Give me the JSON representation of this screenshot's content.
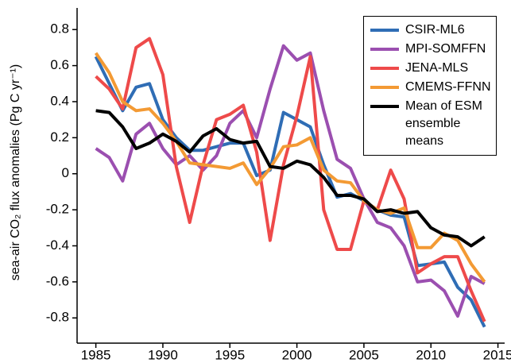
{
  "chart_data": {
    "type": "line",
    "ylabel": "sea-air CO₂ flux anomalies (Pg C yr⁻¹)",
    "x": [
      1985,
      1986,
      1987,
      1988,
      1989,
      1990,
      1991,
      1992,
      1993,
      1994,
      1995,
      1996,
      1997,
      1998,
      1999,
      2000,
      2001,
      2002,
      2003,
      2004,
      2005,
      2006,
      2007,
      2008,
      2009,
      2010,
      2011,
      2012,
      2013,
      2014
    ],
    "series": [
      {
        "name": "CSIR-ML6",
        "color": "#2f6db5",
        "values": [
          0.65,
          0.5,
          0.35,
          0.48,
          0.5,
          0.3,
          0.2,
          0.13,
          0.13,
          0.15,
          0.17,
          0.17,
          -0.01,
          0.02,
          0.34,
          0.3,
          0.26,
          0.05,
          -0.13,
          -0.11,
          -0.15,
          -0.2,
          -0.23,
          -0.24,
          -0.51,
          -0.5,
          -0.49,
          -0.63,
          -0.7,
          -0.85
        ]
      },
      {
        "name": "MPI-SOMFFN",
        "color": "#9b4fb0",
        "values": [
          0.14,
          0.09,
          -0.04,
          0.22,
          0.28,
          0.14,
          0.05,
          0.1,
          0.02,
          0.1,
          0.28,
          0.35,
          0.2,
          0.47,
          0.71,
          0.63,
          0.67,
          0.35,
          0.08,
          0.03,
          -0.14,
          -0.27,
          -0.3,
          -0.4,
          -0.6,
          -0.59,
          -0.65,
          -0.79,
          -0.57,
          -0.61
        ]
      },
      {
        "name": "JENA-MLS",
        "color": "#ee4a4a",
        "values": [
          0.54,
          0.47,
          0.36,
          0.7,
          0.75,
          0.55,
          0.04,
          -0.27,
          0.05,
          0.3,
          0.33,
          0.38,
          0.12,
          -0.37,
          0.05,
          0.32,
          0.65,
          -0.2,
          -0.42,
          -0.42,
          -0.15,
          -0.2,
          0.02,
          -0.14,
          -0.55,
          -0.5,
          -0.46,
          -0.46,
          -0.65,
          -0.82
        ]
      },
      {
        "name": "CMEMS-FFNN",
        "color": "#f39a34",
        "values": [
          0.67,
          0.56,
          0.4,
          0.35,
          0.36,
          0.28,
          0.18,
          0.06,
          0.05,
          0.04,
          0.03,
          0.06,
          -0.06,
          0.03,
          0.15,
          0.16,
          0.2,
          0.02,
          -0.04,
          -0.05,
          -0.15,
          -0.2,
          -0.22,
          -0.19,
          -0.41,
          -0.41,
          -0.33,
          -0.37,
          -0.5,
          -0.6
        ]
      },
      {
        "name": "Mean of ESM ensemble means",
        "color": "#000000",
        "values": [
          0.35,
          0.34,
          0.26,
          0.14,
          0.17,
          0.22,
          0.18,
          0.12,
          0.21,
          0.25,
          0.19,
          0.17,
          0.18,
          0.04,
          0.03,
          0.07,
          0.05,
          -0.02,
          -0.12,
          -0.12,
          -0.14,
          -0.21,
          -0.2,
          -0.22,
          -0.21,
          -0.3,
          -0.34,
          -0.35,
          -0.4,
          -0.35
        ]
      }
    ],
    "xlim": [
      1983.6,
      2015.5
    ],
    "xticks": [
      1985,
      1990,
      1995,
      2000,
      2005,
      2010,
      2015
    ],
    "ylim": [
      -0.94,
      0.92
    ],
    "yticks": [
      -0.8,
      -0.6,
      -0.4,
      -0.2,
      0,
      0.2,
      0.4,
      0.6,
      0.8
    ],
    "legend": "upper right"
  }
}
